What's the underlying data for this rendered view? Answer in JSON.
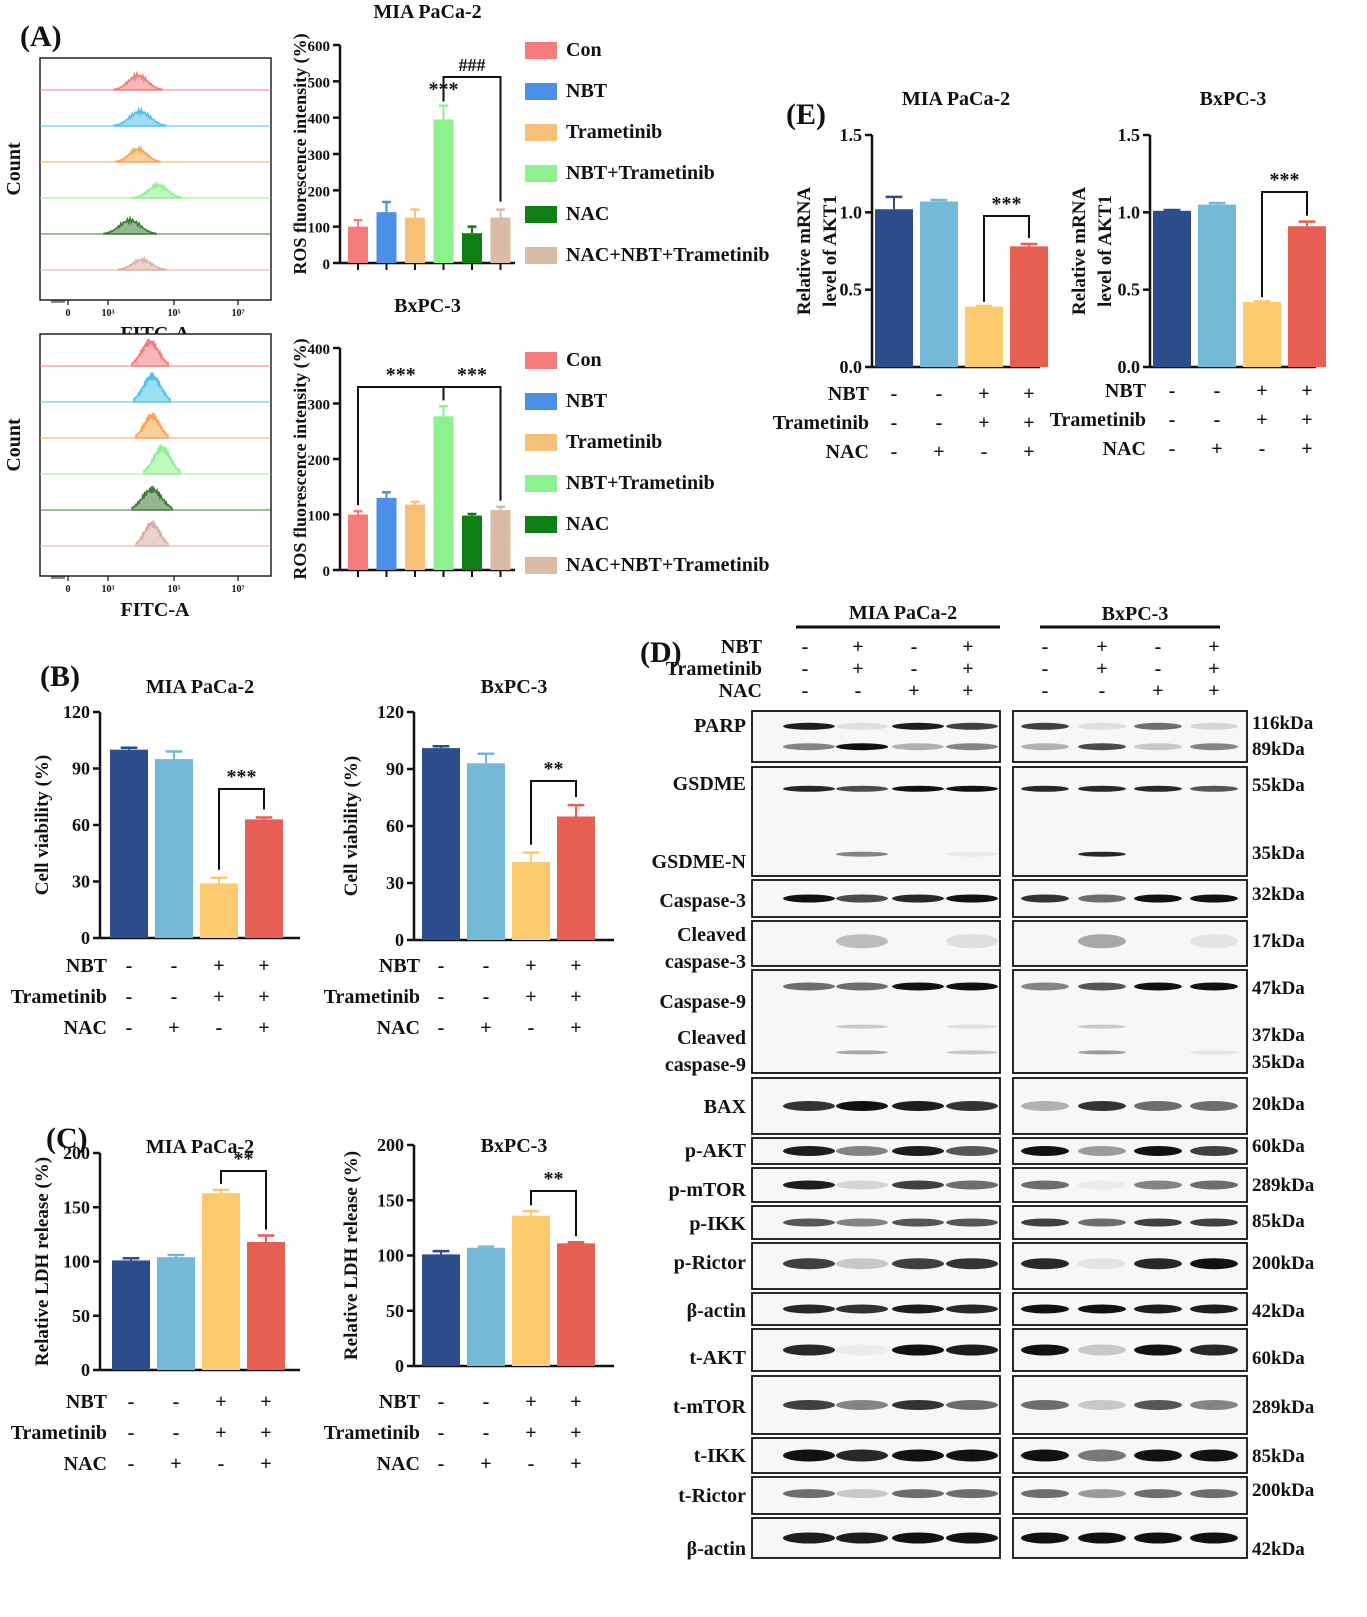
{
  "colors": {
    "con": "#F47C7C",
    "nbt": "#4B8FE8",
    "tram": "#F8BF79",
    "combo": "#8DF28D",
    "nac": "#0E7F12",
    "nac_combo": "#D9BBA6",
    "navy": "#2C4C8C",
    "lightblue": "#74BAD6",
    "yellow": "#FBCB6E",
    "red": "#E65F52"
  },
  "panel_letters": [
    "(A)",
    "(B)",
    "(C)",
    "(D)",
    "(E)"
  ],
  "flow": {
    "ylabel": "Count",
    "xlabel": "FITC-A",
    "ticks": [
      "0",
      "10³",
      "10⁵",
      "10⁷"
    ],
    "histogram_colors": [
      "#F47C7C",
      "#4FC3EA",
      "#F8A54F",
      "#8DF28D",
      "#3E7A35",
      "#D9AFA3"
    ]
  },
  "legend": [
    "Con",
    "NBT",
    "Trametinib",
    "NBT+Trametinib",
    "NAC",
    "NAC+NBT+Trametinib"
  ],
  "chart_data": [
    {
      "id": "A-MIA",
      "type": "bar",
      "title": "MIA PaCa-2",
      "ylabel": "ROS fluorescence intensity (%)",
      "categories": [
        "Con",
        "NBT",
        "Trametinib",
        "NBT+Trametinib",
        "NAC",
        "NAC+NBT+Trametinib"
      ],
      "values": [
        100,
        140,
        125,
        395,
        82,
        125
      ],
      "errors": [
        18,
        28,
        22,
        38,
        18,
        22
      ],
      "ylim": [
        0,
        600
      ],
      "yticks": [
        "0",
        "100",
        "200",
        "300",
        "400",
        "500",
        "600"
      ],
      "annotations": [
        "***",
        "###"
      ]
    },
    {
      "id": "A-BxPC",
      "type": "bar",
      "title": "BxPC-3",
      "ylabel": "ROS fluorescence intensity (%)",
      "categories": [
        "Con",
        "NBT",
        "Trametinib",
        "NBT+Trametinib",
        "NAC",
        "NAC+NBT+Trametinib"
      ],
      "values": [
        100,
        130,
        118,
        277,
        98,
        108
      ],
      "errors": [
        6,
        10,
        5,
        18,
        3,
        6
      ],
      "ylim": [
        0,
        400
      ],
      "yticks": [
        "0",
        "100",
        "200",
        "300",
        "400"
      ],
      "annotations": [
        "***",
        "***"
      ]
    },
    {
      "id": "B-MIA",
      "type": "bar",
      "title": "MIA PaCa-2",
      "ylabel": "Cell viability (%)",
      "values": [
        100,
        95,
        29,
        63
      ],
      "errors": [
        1,
        4,
        3,
        1
      ],
      "ylim": [
        0,
        120
      ],
      "yticks": [
        "0",
        "30",
        "60",
        "90",
        "120"
      ],
      "annotations": [
        "***"
      ]
    },
    {
      "id": "B-BxPC",
      "type": "bar",
      "title": "BxPC-3",
      "ylabel": "Cell viability (%)",
      "values": [
        101,
        93,
        41,
        65
      ],
      "errors": [
        1,
        5,
        5,
        6
      ],
      "ylim": [
        0,
        120
      ],
      "yticks": [
        "0",
        "30",
        "60",
        "90",
        "120"
      ],
      "annotations": [
        "**"
      ]
    },
    {
      "id": "C-MIA",
      "type": "bar",
      "title": "MIA PaCa-2",
      "ylabel": "Relative LDH release (%)",
      "values": [
        101,
        104,
        163,
        118
      ],
      "errors": [
        2,
        2,
        3,
        6
      ],
      "ylim": [
        0,
        200
      ],
      "yticks": [
        "0",
        "50",
        "100",
        "150",
        "200"
      ],
      "annotations": [
        "**"
      ]
    },
    {
      "id": "C-BxPC",
      "type": "bar",
      "title": "BxPC-3",
      "ylabel": "Relative LDH release (%)",
      "values": [
        101,
        107,
        136,
        111
      ],
      "errors": [
        3,
        1,
        4,
        1
      ],
      "ylim": [
        0,
        200
      ],
      "yticks": [
        "0",
        "50",
        "100",
        "150",
        "200"
      ],
      "annotations": [
        "**"
      ]
    },
    {
      "id": "E-MIA",
      "type": "bar",
      "title": "MIA PaCa-2",
      "ylabel": "Relative mRNA level of AKT1",
      "values": [
        1.02,
        1.07,
        0.39,
        0.78
      ],
      "errors": [
        0.08,
        0.01,
        0.005,
        0.015
      ],
      "ylim": [
        0,
        1.5
      ],
      "yticks": [
        "0.0",
        "0.5",
        "1.0",
        "1.5"
      ],
      "annotations": [
        "***"
      ]
    },
    {
      "id": "E-BxPC",
      "type": "bar",
      "title": "BxPC-3",
      "ylabel": "Relative mRNA level of AKT1",
      "values": [
        1.01,
        1.05,
        0.42,
        0.91
      ],
      "errors": [
        0.005,
        0.01,
        0.005,
        0.03
      ],
      "ylim": [
        0,
        1.5
      ],
      "yticks": [
        "0.0",
        "0.5",
        "1.0",
        "1.5"
      ],
      "annotations": [
        "***"
      ]
    }
  ],
  "treatments": {
    "rows": [
      "NBT",
      "Trametinib",
      "NAC"
    ],
    "signs": [
      [
        "-",
        "-",
        "+",
        "+"
      ],
      [
        "-",
        "-",
        "+",
        "+"
      ],
      [
        "-",
        "+",
        "-",
        "+"
      ]
    ]
  },
  "western": {
    "cell_lines": [
      "MIA PaCa-2",
      "BxPC-3"
    ],
    "rows": [
      "NBT",
      "Trametinib",
      "NAC"
    ],
    "signs": [
      [
        "-",
        "+",
        "-",
        "+"
      ],
      [
        "-",
        "+",
        "-",
        "+"
      ],
      [
        "-",
        "-",
        "+",
        "+"
      ]
    ],
    "blots": [
      {
        "labels": [
          "PARP"
        ],
        "kda": [
          "116kDa",
          "89kDa"
        ]
      },
      {
        "labels": [
          "GSDME",
          "GSDME-N"
        ],
        "kda": [
          "55kDa",
          "35kDa"
        ]
      },
      {
        "labels": [
          "Caspase-3"
        ],
        "kda": [
          "32kDa"
        ]
      },
      {
        "labels": [
          "Cleaved",
          "caspase-3"
        ],
        "kda": [
          "17kDa"
        ]
      },
      {
        "labels": [
          "Caspase-9",
          "Cleaved",
          "caspase-9"
        ],
        "kda": [
          "47kDa",
          "37kDa",
          "35kDa"
        ]
      },
      {
        "labels": [
          "BAX"
        ],
        "kda": [
          "20kDa"
        ]
      },
      {
        "labels": [
          "p-AKT"
        ],
        "kda": [
          "60kDa"
        ]
      },
      {
        "labels": [
          "p-mTOR"
        ],
        "kda": [
          "289kDa"
        ]
      },
      {
        "labels": [
          "p-IKK"
        ],
        "kda": [
          "85kDa"
        ]
      },
      {
        "labels": [
          "p-Rictor"
        ],
        "kda": [
          "200kDa"
        ]
      },
      {
        "labels": [
          "β-actin"
        ],
        "kda": [
          "42kDa"
        ]
      },
      {
        "labels": [
          "t-AKT"
        ],
        "kda": [
          "60kDa"
        ]
      },
      {
        "labels": [
          "t-mTOR"
        ],
        "kda": [
          "289kDa"
        ]
      },
      {
        "labels": [
          "t-IKK"
        ],
        "kda": [
          "85kDa"
        ]
      },
      {
        "labels": [
          "t-Rictor"
        ],
        "kda": [
          "200kDa"
        ]
      },
      {
        "labels": [
          "β-actin"
        ],
        "kda": [
          "42kDa"
        ]
      }
    ]
  }
}
